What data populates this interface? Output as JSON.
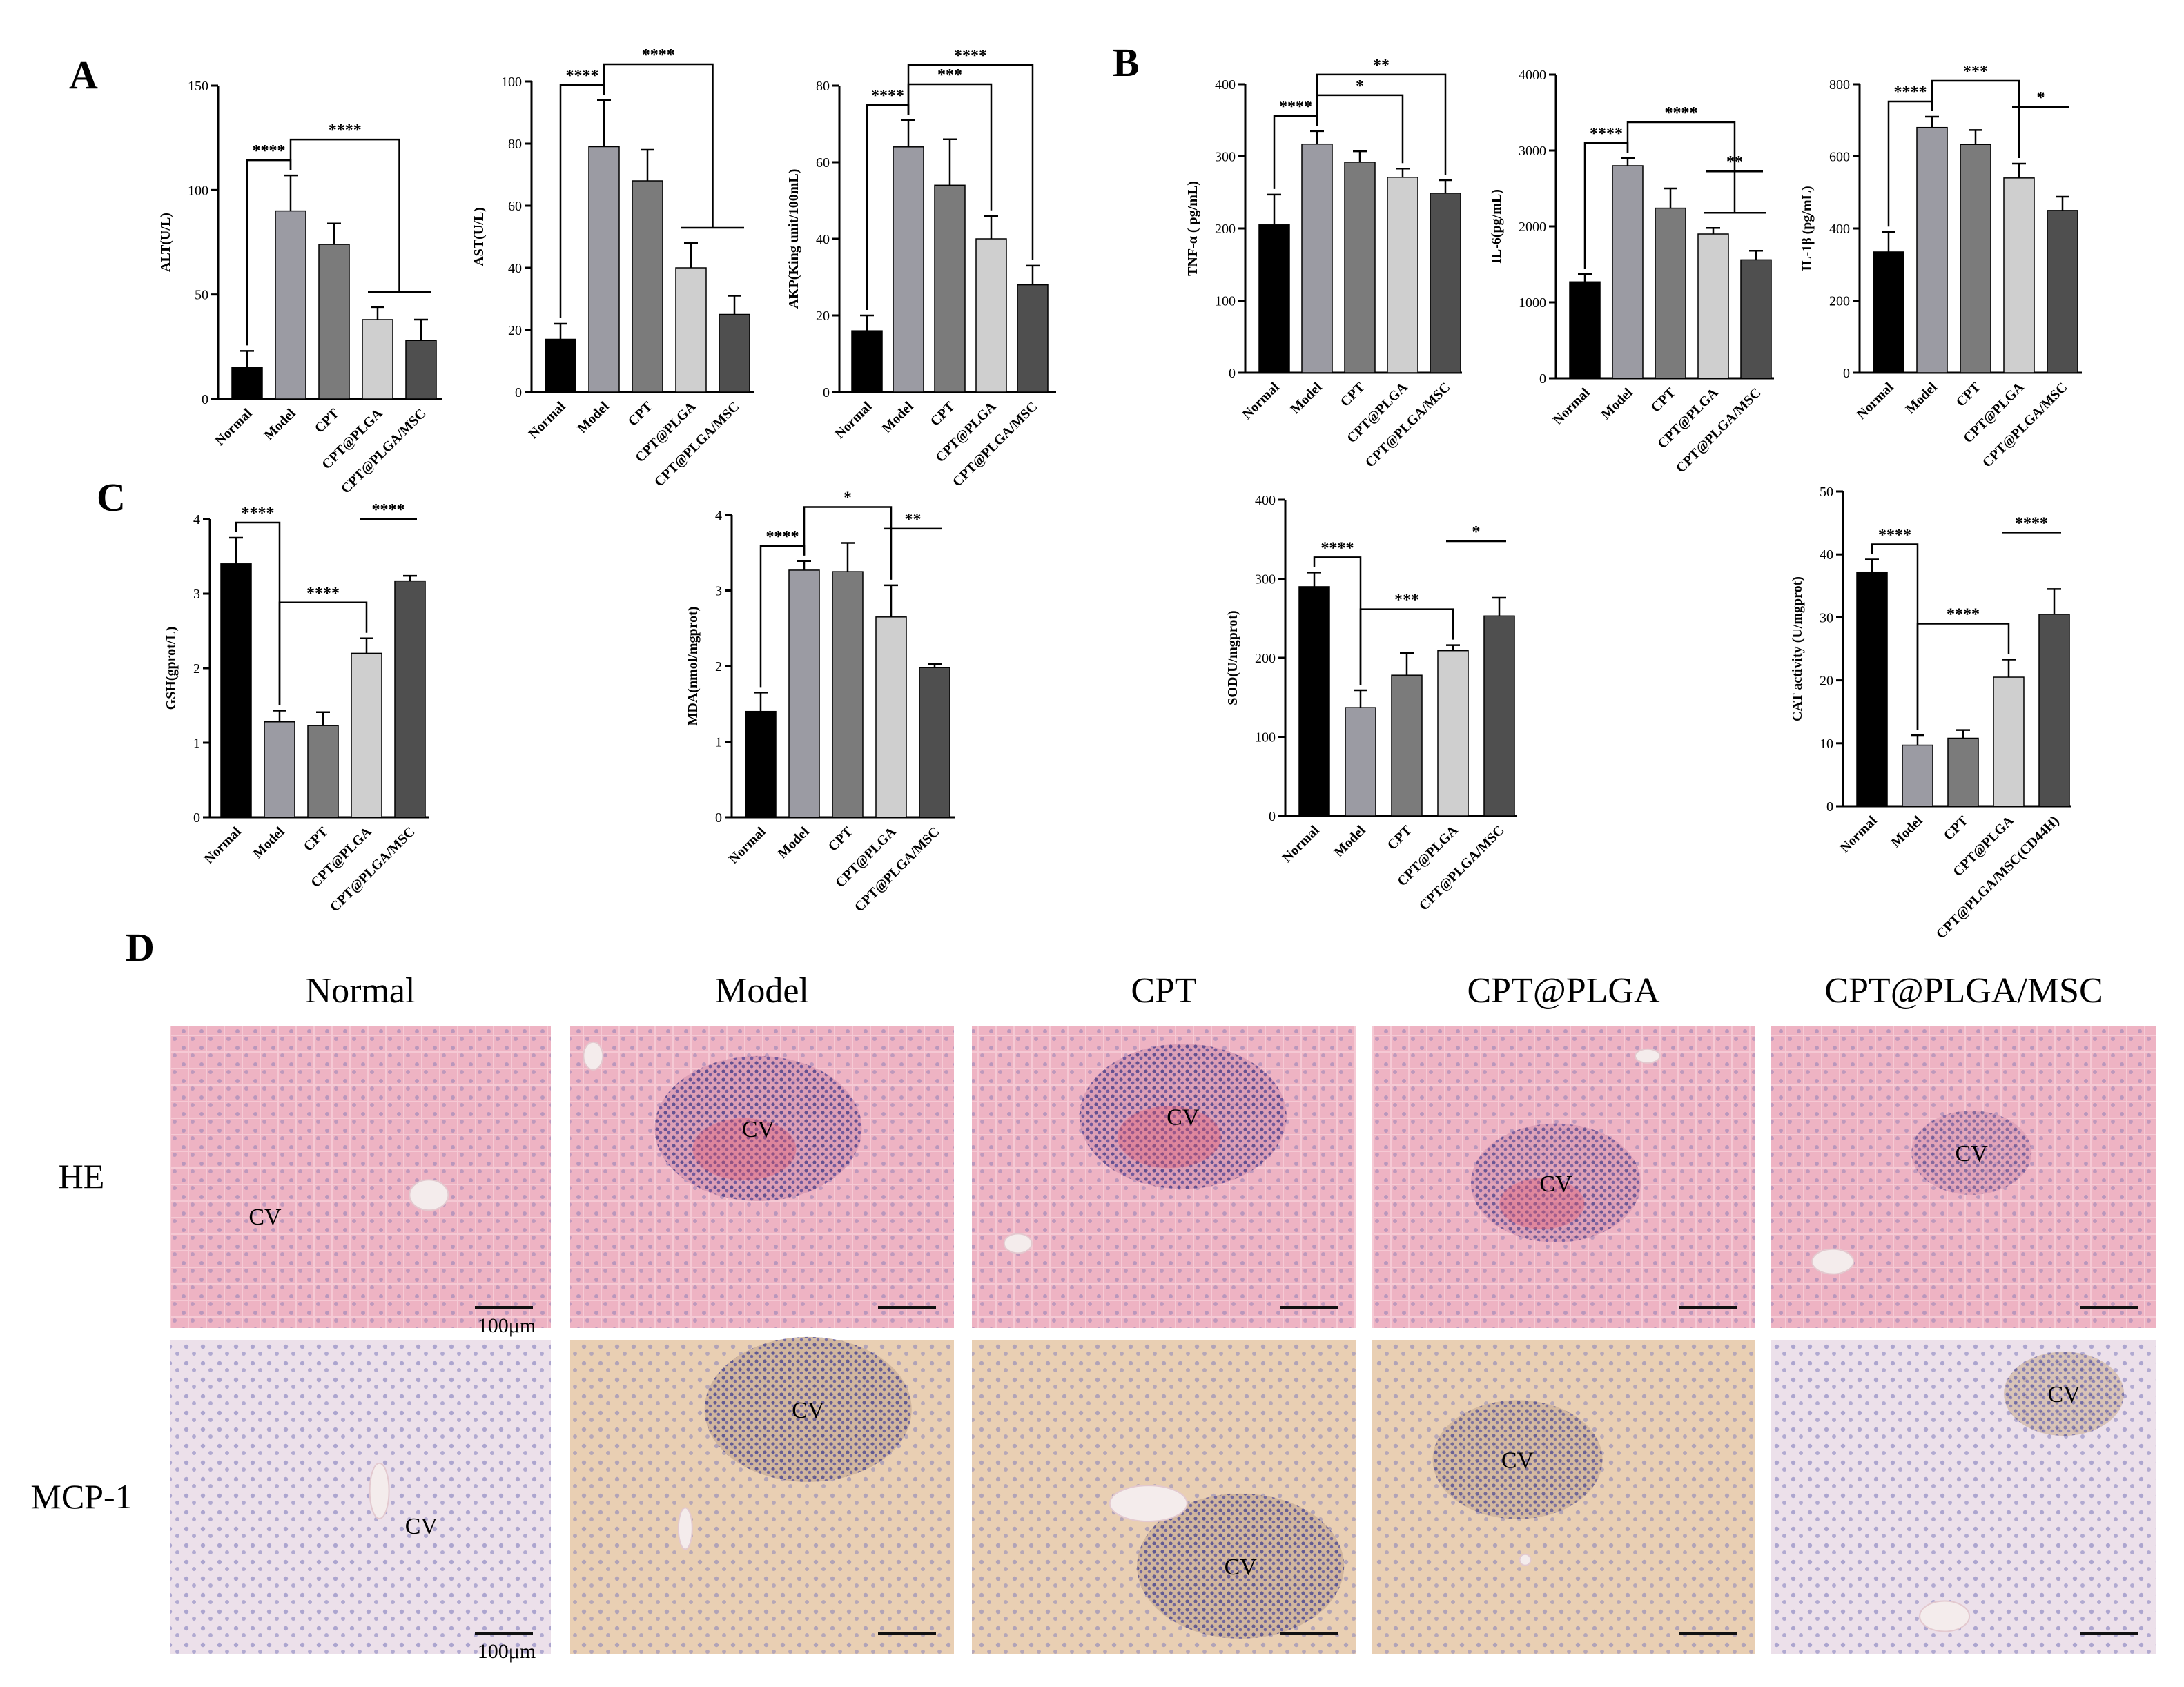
{
  "figure": {
    "panels": {
      "A": "A",
      "B": "B",
      "C": "C",
      "D": "D"
    }
  },
  "colors": {
    "Normal": "#000000",
    "Model": "#9b9ba3",
    "CPT": "#7b7b7b",
    "CPT@PLGA": "#cfcfcf",
    "CPT@PLGA/MSC": "#4f4f4f",
    "he_stain": "#e8a7b8",
    "ihc_stain": "#e6c7a6"
  },
  "chart_data": [
    {
      "id": "ALT",
      "panel": "A",
      "type": "bar",
      "categories": [
        "Normal",
        "Model",
        "CPT",
        "CPT@PLGA",
        "CPT@PLGA/MSC"
      ],
      "values": [
        15,
        90,
        74,
        38,
        28
      ],
      "errors": [
        8,
        17,
        10,
        6,
        10
      ],
      "ylabel": "ALT(U/L)",
      "ylim": [
        0,
        150
      ],
      "yticks": [
        "0",
        "50",
        "100",
        "150"
      ],
      "significance": [
        {
          "label": "****",
          "from": 0,
          "to": 1
        },
        {
          "label": "****",
          "from": 1,
          "to": [
            3,
            4
          ]
        }
      ]
    },
    {
      "id": "AST",
      "panel": "A",
      "type": "bar",
      "categories": [
        "Normal",
        "Model",
        "CPT",
        "CPT@PLGA",
        "CPT@PLGA/MSC"
      ],
      "values": [
        17,
        79,
        68,
        40,
        25
      ],
      "errors": [
        5,
        15,
        10,
        8,
        6
      ],
      "ylabel": "AST(U/L)",
      "ylim": [
        0,
        100
      ],
      "yticks": [
        "0",
        "20",
        "40",
        "60",
        "80",
        "100"
      ],
      "significance": [
        {
          "label": "****",
          "from": 0,
          "to": 1
        },
        {
          "label": "****",
          "from": 1,
          "to": [
            3,
            4
          ]
        }
      ]
    },
    {
      "id": "AKP",
      "panel": "A",
      "type": "bar",
      "categories": [
        "Normal",
        "Model",
        "CPT",
        "CPT@PLGA",
        "CPT@PLGA/MSC"
      ],
      "values": [
        16,
        64,
        54,
        40,
        28
      ],
      "errors": [
        4,
        7,
        12,
        6,
        5
      ],
      "ylabel": "AKP(King unit/100mL)",
      "ylim": [
        0,
        80
      ],
      "yticks": [
        "0",
        "20",
        "40",
        "60",
        "80"
      ],
      "significance": [
        {
          "label": "****",
          "from": 0,
          "to": 1
        },
        {
          "label": "***",
          "from": 1,
          "to": 3
        },
        {
          "label": "****",
          "from": 1,
          "to": 4
        }
      ]
    },
    {
      "id": "TNF",
      "panel": "B",
      "type": "bar",
      "categories": [
        "Normal",
        "Model",
        "CPT",
        "CPT@PLGA",
        "CPT@PLGA/MSC"
      ],
      "values": [
        205,
        317,
        292,
        271,
        249
      ],
      "errors": [
        42,
        18,
        15,
        12,
        18
      ],
      "ylabel": "TNF-α ( pg/mL)",
      "ylim": [
        0,
        400
      ],
      "yticks": [
        "0",
        "100",
        "200",
        "300",
        "400"
      ],
      "significance": [
        {
          "label": "****",
          "from": 0,
          "to": 1
        },
        {
          "label": "*",
          "from": 1,
          "to": 3
        },
        {
          "label": "**",
          "from": 1,
          "to": 4
        }
      ]
    },
    {
      "id": "IL6",
      "panel": "B",
      "type": "bar",
      "categories": [
        "Normal",
        "Model",
        "CPT",
        "CPT@PLGA",
        "CPT@PLGA/MSC"
      ],
      "values": [
        1270,
        2800,
        2240,
        1900,
        1560
      ],
      "errors": [
        100,
        100,
        260,
        80,
        120
      ],
      "ylabel": "IL-6(pg/mL)",
      "ylim": [
        0,
        4000
      ],
      "yticks": [
        "0",
        "1000",
        "2000",
        "3000",
        "4000"
      ],
      "significance": [
        {
          "label": "****",
          "from": 0,
          "to": 1
        },
        {
          "label": "****",
          "from": 1,
          "to": [
            3,
            4
          ]
        },
        {
          "label": "**",
          "from": 3,
          "to": 4
        }
      ]
    },
    {
      "id": "IL1b",
      "panel": "B",
      "type": "bar",
      "categories": [
        "Normal",
        "Model",
        "CPT",
        "CPT@PLGA",
        "CPT@PLGA/MSC"
      ],
      "values": [
        335,
        680,
        633,
        540,
        450
      ],
      "errors": [
        55,
        30,
        40,
        40,
        38
      ],
      "ylabel": "IL-1β (pg/mL)",
      "ylim": [
        0,
        800
      ],
      "yticks": [
        "0",
        "200",
        "400",
        "600",
        "800"
      ],
      "significance": [
        {
          "label": "****",
          "from": 0,
          "to": 1
        },
        {
          "label": "***",
          "from": 1,
          "to": 3
        },
        {
          "label": "*",
          "from": 3,
          "to": 4
        }
      ]
    },
    {
      "id": "GSH",
      "panel": "C",
      "type": "bar",
      "categories": [
        "Normal",
        "Model",
        "CPT",
        "CPT@PLGA",
        "CPT@PLGA/MSC"
      ],
      "values": [
        3.4,
        1.28,
        1.23,
        2.2,
        3.17
      ],
      "errors": [
        0.35,
        0.15,
        0.18,
        0.2,
        0.07
      ],
      "ylabel": "GSH(gprot/L)",
      "ylim": [
        0,
        4
      ],
      "yticks": [
        "0",
        "1",
        "2",
        "3",
        "4"
      ],
      "significance": [
        {
          "label": "****",
          "from": 0,
          "to": 1
        },
        {
          "label": "****",
          "from": 1,
          "to": 3
        },
        {
          "label": "****",
          "from": 3,
          "to": 4
        }
      ]
    },
    {
      "id": "MDA",
      "panel": "C",
      "type": "bar",
      "categories": [
        "Normal",
        "Model",
        "CPT",
        "CPT@PLGA",
        "CPT@PLGA/MSC"
      ],
      "values": [
        1.4,
        3.27,
        3.25,
        2.65,
        1.98
      ],
      "errors": [
        0.25,
        0.12,
        0.38,
        0.42,
        0.05
      ],
      "ylabel": "MDA(nmol/mgprot)",
      "ylim": [
        0,
        4
      ],
      "yticks": [
        "0",
        "1",
        "2",
        "3",
        "4"
      ],
      "significance": [
        {
          "label": "****",
          "from": 0,
          "to": 1
        },
        {
          "label": "*",
          "from": 1,
          "to": 3
        },
        {
          "label": "**",
          "from": 3,
          "to": 4
        }
      ]
    },
    {
      "id": "SOD",
      "panel": "C",
      "type": "bar",
      "categories": [
        "Normal",
        "Model",
        "CPT",
        "CPT@PLGA",
        "CPT@PLGA/MSC"
      ],
      "values": [
        290,
        137,
        178,
        209,
        253
      ],
      "errors": [
        18,
        22,
        28,
        7,
        23
      ],
      "ylabel": "SOD(U/mgprot)",
      "ylim": [
        0,
        400
      ],
      "yticks": [
        "0",
        "100",
        "200",
        "300",
        "400"
      ],
      "significance": [
        {
          "label": "****",
          "from": 0,
          "to": 1
        },
        {
          "label": "***",
          "from": 1,
          "to": 3
        },
        {
          "label": "*",
          "from": 3,
          "to": 4
        }
      ]
    },
    {
      "id": "CAT",
      "panel": "C",
      "type": "bar",
      "categories": [
        "Normal",
        "Model",
        "CPT",
        "CPT@PLGA",
        "CPT@PLGA/MSC(CD44H)"
      ],
      "values": [
        37.2,
        9.7,
        10.8,
        20.5,
        30.5
      ],
      "errors": [
        2,
        1.6,
        1.3,
        2.8,
        4
      ],
      "ylabel": "CAT activity (U/mgprot)",
      "ylim": [
        0,
        50
      ],
      "yticks": [
        "0",
        "10",
        "20",
        "30",
        "40",
        "50"
      ],
      "significance": [
        {
          "label": "****",
          "from": 0,
          "to": 1
        },
        {
          "label": "****",
          "from": 1,
          "to": 3
        },
        {
          "label": "****",
          "from": 3,
          "to": 4
        }
      ]
    }
  ],
  "histology": {
    "columns": [
      "Normal",
      "Model",
      "CPT",
      "CPT@PLGA",
      "CPT@PLGA/MSC"
    ],
    "rows": [
      "HE",
      "MCP-1"
    ],
    "cv_label": "CV",
    "scale_label": "100μm"
  }
}
